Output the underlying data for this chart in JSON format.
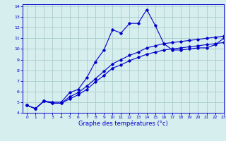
{
  "xlabel": "Graphe des températures (°c)",
  "bg_color": "#d6eeee",
  "grid_color": "#aacccc",
  "line_color": "#0000cc",
  "xlim": [
    -0.5,
    23
  ],
  "ylim": [
    4,
    14.2
  ],
  "yticks": [
    4,
    5,
    6,
    7,
    8,
    9,
    10,
    11,
    12,
    13,
    14
  ],
  "xticks": [
    0,
    1,
    2,
    3,
    4,
    5,
    6,
    7,
    8,
    9,
    10,
    11,
    12,
    13,
    14,
    15,
    16,
    17,
    18,
    19,
    20,
    21,
    22,
    23
  ],
  "series1_x": [
    0,
    1,
    2,
    3,
    4,
    5,
    6,
    7,
    8,
    9,
    10,
    11,
    12,
    13,
    14,
    15,
    16,
    17,
    18,
    19,
    20,
    21,
    22,
    23
  ],
  "series1_y": [
    4.7,
    4.4,
    5.1,
    5.0,
    5.0,
    5.9,
    6.2,
    7.3,
    8.8,
    9.9,
    11.8,
    11.5,
    12.4,
    12.4,
    13.7,
    12.2,
    10.5,
    9.9,
    9.9,
    10.0,
    10.1,
    10.1,
    10.4,
    11.0
  ],
  "series2_x": [
    0,
    1,
    2,
    3,
    4,
    5,
    6,
    7,
    8,
    9,
    10,
    11,
    12,
    13,
    14,
    15,
    16,
    17,
    18,
    19,
    20,
    21,
    22,
    23
  ],
  "series2_y": [
    4.7,
    4.4,
    5.1,
    4.9,
    4.9,
    5.5,
    5.9,
    6.5,
    7.2,
    7.9,
    8.6,
    9.0,
    9.4,
    9.7,
    10.1,
    10.3,
    10.5,
    10.6,
    10.7,
    10.8,
    10.9,
    11.0,
    11.1,
    11.2
  ],
  "series3_x": [
    0,
    1,
    2,
    3,
    4,
    5,
    6,
    7,
    8,
    9,
    10,
    11,
    12,
    13,
    14,
    15,
    16,
    17,
    18,
    19,
    20,
    21,
    22,
    23
  ],
  "series3_y": [
    4.7,
    4.4,
    5.1,
    4.9,
    4.9,
    5.3,
    5.7,
    6.2,
    6.9,
    7.5,
    8.2,
    8.5,
    8.9,
    9.2,
    9.5,
    9.7,
    9.9,
    10.0,
    10.1,
    10.2,
    10.3,
    10.4,
    10.5,
    10.6
  ]
}
